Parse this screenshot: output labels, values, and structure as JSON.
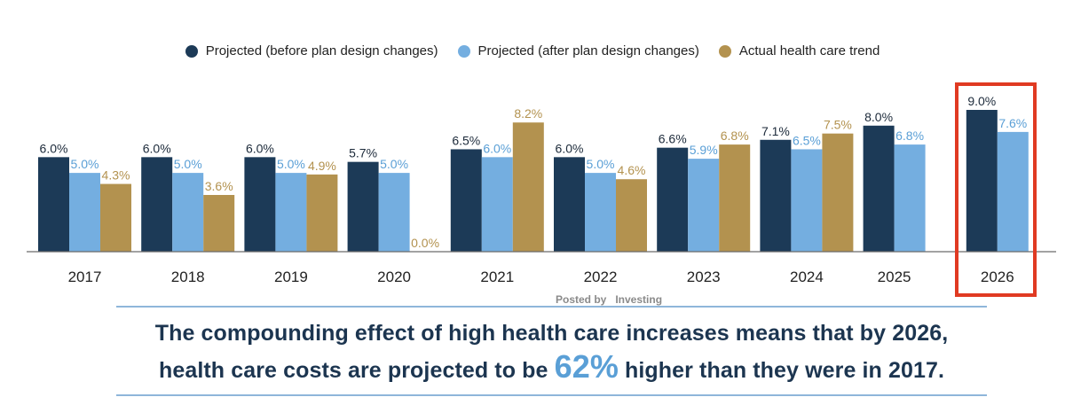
{
  "legend": [
    {
      "label": "Projected (before plan design changes)",
      "color": "#1c3a57"
    },
    {
      "label": "Projected (after plan design changes)",
      "color": "#74aee0"
    },
    {
      "label": "Actual health care trend",
      "color": "#b3924f"
    }
  ],
  "watermark": "Posted by   Investing",
  "caption": {
    "line1": "The compounding effect of high health care increases means that by 2026,",
    "line2_pre": "health care costs are projected to be ",
    "line2_highlight": "62%",
    "line2_post": " higher than they were in 2017."
  },
  "chart_data": {
    "type": "bar",
    "title": "",
    "xlabel": "",
    "ylabel": "",
    "ylim": [
      0,
      9.0
    ],
    "grid": false,
    "legend_position": "top-center",
    "categories": [
      "2017",
      "2018",
      "2019",
      "2020",
      "2021",
      "2022",
      "2023",
      "2024",
      "2025",
      "2026"
    ],
    "series": [
      {
        "name": "Projected (before plan design changes)",
        "color": "#1c3a57",
        "label_color": "#1c2a3a",
        "values": [
          6.0,
          6.0,
          6.0,
          5.7,
          6.5,
          6.0,
          6.6,
          7.1,
          8.0,
          9.0
        ],
        "labels": [
          "6.0%",
          "6.0%",
          "6.0%",
          "5.7%",
          "6.5%",
          "6.0%",
          "6.6%",
          "7.1%",
          "8.0%",
          "9.0%"
        ]
      },
      {
        "name": "Projected (after plan design changes)",
        "color": "#74aee0",
        "label_color": "#5a9fd6",
        "values": [
          5.0,
          5.0,
          5.0,
          5.0,
          6.0,
          5.0,
          5.9,
          6.5,
          6.8,
          7.6
        ],
        "labels": [
          "5.0%",
          "5.0%",
          "5.0%",
          "5.0%",
          "6.0%",
          "5.0%",
          "5.9%",
          "6.5%",
          "6.8%",
          "7.6%"
        ]
      },
      {
        "name": "Actual health care trend",
        "color": "#b3924f",
        "label_color": "#b3924f",
        "values": [
          4.3,
          3.6,
          4.9,
          0.0,
          8.2,
          4.6,
          6.8,
          7.5,
          null,
          null
        ],
        "labels": [
          "4.3%",
          "3.6%",
          "4.9%",
          "0.0%",
          "8.2%",
          "4.6%",
          "6.8%",
          "7.5%",
          null,
          null
        ]
      }
    ],
    "annotations": [
      {
        "type": "highlight-box",
        "category": "2026",
        "color": "#e03a22"
      }
    ]
  }
}
